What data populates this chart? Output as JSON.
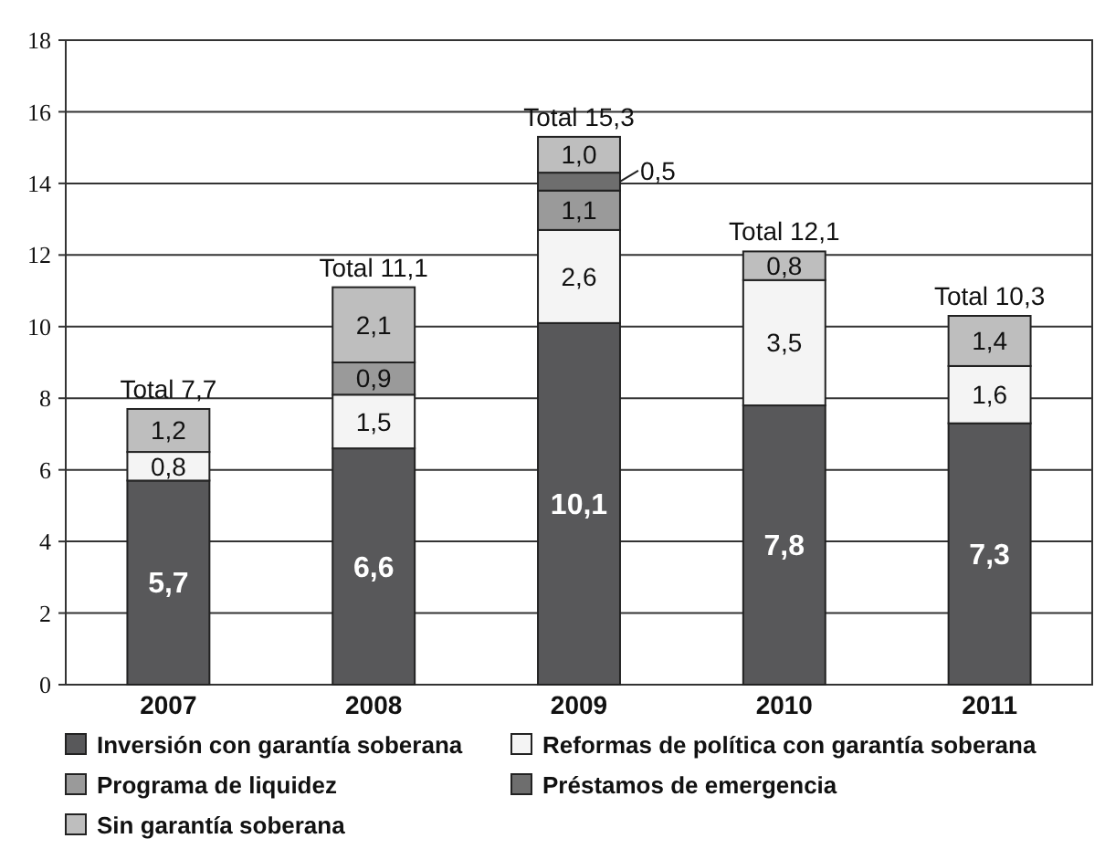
{
  "chart_data": {
    "type": "bar",
    "stacked": true,
    "categories": [
      "2007",
      "2008",
      "2009",
      "2010",
      "2011"
    ],
    "series": [
      {
        "name": "Inversión con garantía soberana",
        "color": "#58585a",
        "values": [
          5.7,
          6.6,
          10.1,
          7.8,
          7.3
        ],
        "value_labels": [
          "5,7",
          "6,6",
          "10,1",
          "7,8",
          "7,3"
        ]
      },
      {
        "name": "Reformas de política con garantía soberana",
        "color": "#f4f4f4",
        "values": [
          0.8,
          1.5,
          2.6,
          3.5,
          1.6
        ],
        "value_labels": [
          "0,8",
          "1,5",
          "2,6",
          "3,5",
          "1,6"
        ]
      },
      {
        "name": "Programa de liquidez",
        "color": "#9a9a9a",
        "values": [
          null,
          0.9,
          1.1,
          null,
          null
        ],
        "value_labels": [
          null,
          "0,9",
          "1,1",
          null,
          null
        ]
      },
      {
        "name": "Préstamos de emergencia",
        "color": "#6e6e6e",
        "values": [
          null,
          null,
          0.5,
          null,
          null
        ],
        "value_labels": [
          null,
          null,
          "0,5",
          null,
          null
        ]
      },
      {
        "name": "Sin garantía soberana",
        "color": "#bebebe",
        "values": [
          1.2,
          2.1,
          1.0,
          0.8,
          1.4
        ],
        "value_labels": [
          "1,2",
          "2,1",
          "1,0",
          "0,8",
          "1,4"
        ]
      }
    ],
    "totals": [
      "Total 7,7",
      "Total 11,1",
      "Total 15,3",
      "Total 12,1",
      "Total 10,3"
    ],
    "ylim": [
      0,
      18
    ],
    "yticks": [
      0,
      2,
      4,
      6,
      8,
      10,
      12,
      14,
      16,
      18
    ],
    "grid": "y",
    "legend": "bottom"
  }
}
